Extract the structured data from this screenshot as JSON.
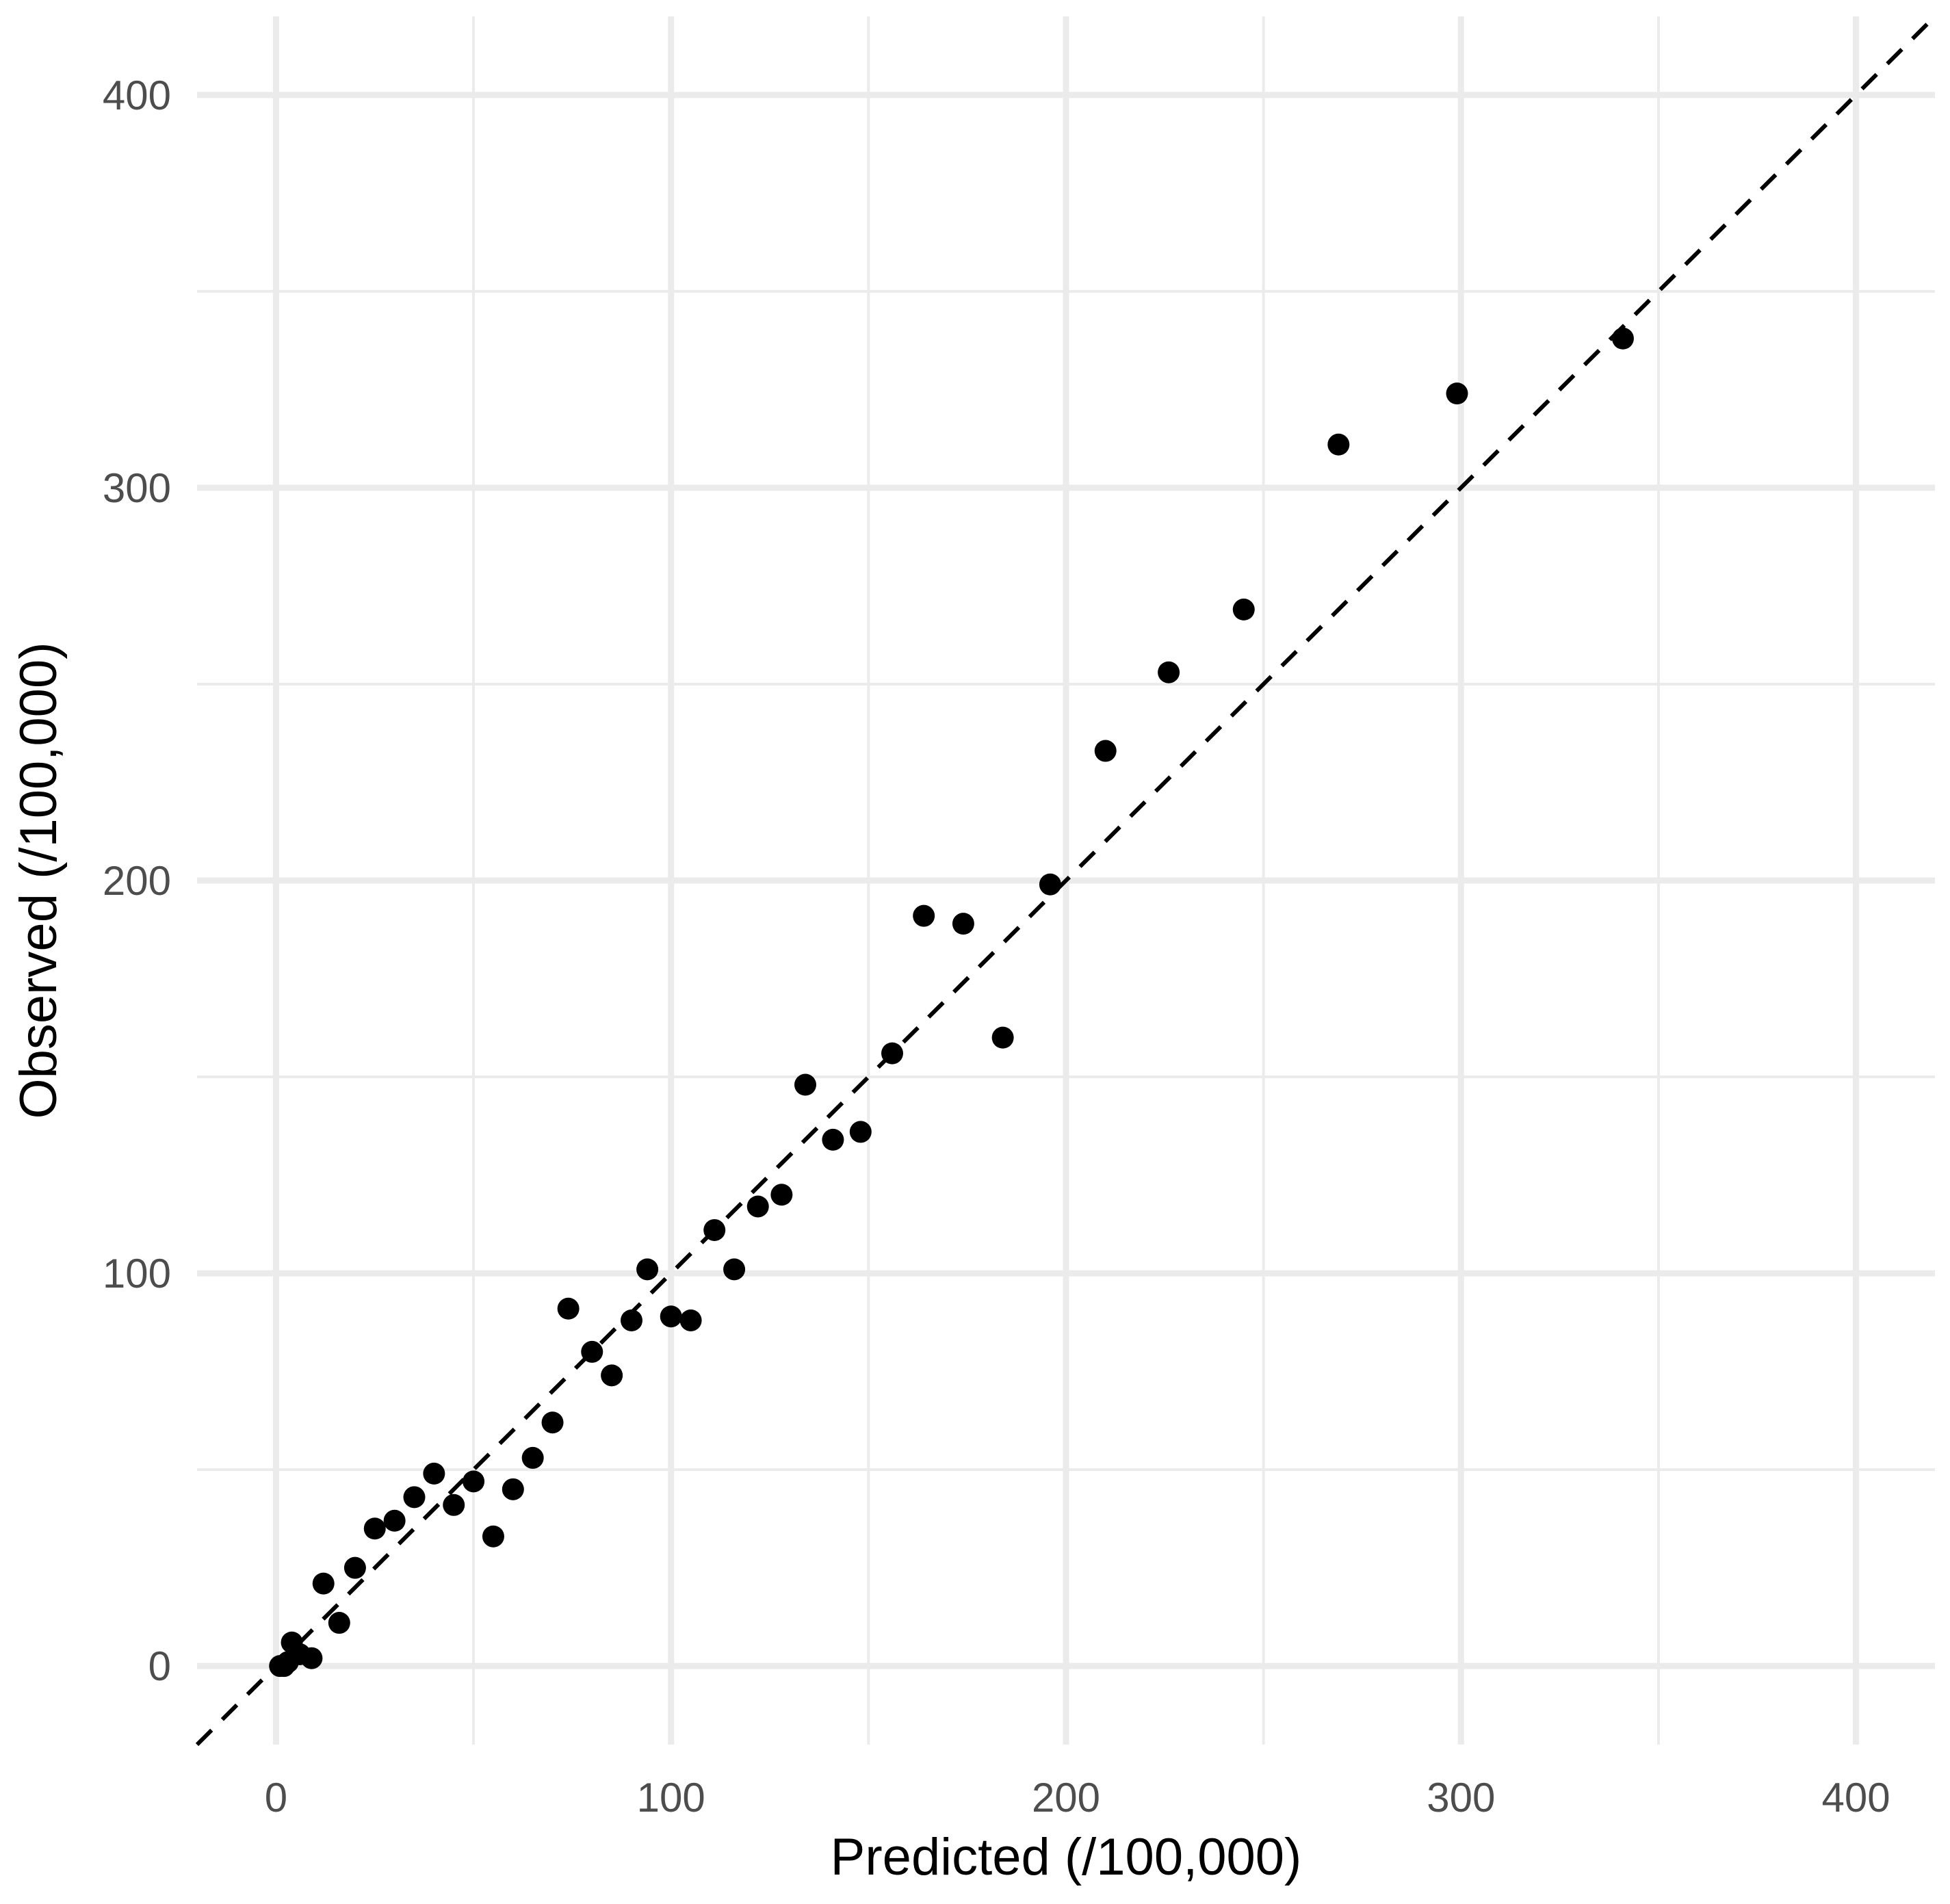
{
  "chart_data": {
    "type": "scatter",
    "xlabel": "Predicted (/100,000)",
    "ylabel": "Observed (/100,000)",
    "xlim": [
      -20,
      420
    ],
    "ylim": [
      -20,
      420
    ],
    "x_ticks": [
      0,
      100,
      200,
      300,
      400
    ],
    "y_ticks": [
      0,
      100,
      200,
      300,
      400
    ],
    "minor_ticks": [
      50,
      150,
      250,
      350
    ],
    "grid": true,
    "reference_line": {
      "type": "identity",
      "style": "dashed",
      "slope": 1,
      "intercept": 0
    },
    "colors": {
      "points": "#000000",
      "grid": "#ebebeb",
      "tick_text": "#4d4d4d",
      "background": "#ffffff"
    },
    "points": [
      [
        1,
        0
      ],
      [
        2,
        0
      ],
      [
        3,
        1
      ],
      [
        4,
        6
      ],
      [
        6,
        3
      ],
      [
        9,
        2
      ],
      [
        12,
        21
      ],
      [
        16,
        11
      ],
      [
        20,
        25
      ],
      [
        25,
        35
      ],
      [
        30,
        37
      ],
      [
        35,
        43
      ],
      [
        40,
        49
      ],
      [
        45,
        41
      ],
      [
        50,
        47
      ],
      [
        55,
        33
      ],
      [
        60,
        45
      ],
      [
        65,
        53
      ],
      [
        70,
        62
      ],
      [
        74,
        91
      ],
      [
        80,
        80
      ],
      [
        85,
        74
      ],
      [
        90,
        88
      ],
      [
        94,
        101
      ],
      [
        100,
        89
      ],
      [
        105,
        88
      ],
      [
        111,
        111
      ],
      [
        116,
        101
      ],
      [
        122,
        117
      ],
      [
        128,
        120
      ],
      [
        134,
        148
      ],
      [
        141,
        134
      ],
      [
        148,
        136
      ],
      [
        156,
        156
      ],
      [
        164,
        191
      ],
      [
        174,
        189
      ],
      [
        184,
        160
      ],
      [
        196,
        199
      ],
      [
        210,
        233
      ],
      [
        226,
        253
      ],
      [
        245,
        269
      ],
      [
        269,
        311
      ],
      [
        299,
        324
      ],
      [
        341,
        338
      ]
    ]
  }
}
